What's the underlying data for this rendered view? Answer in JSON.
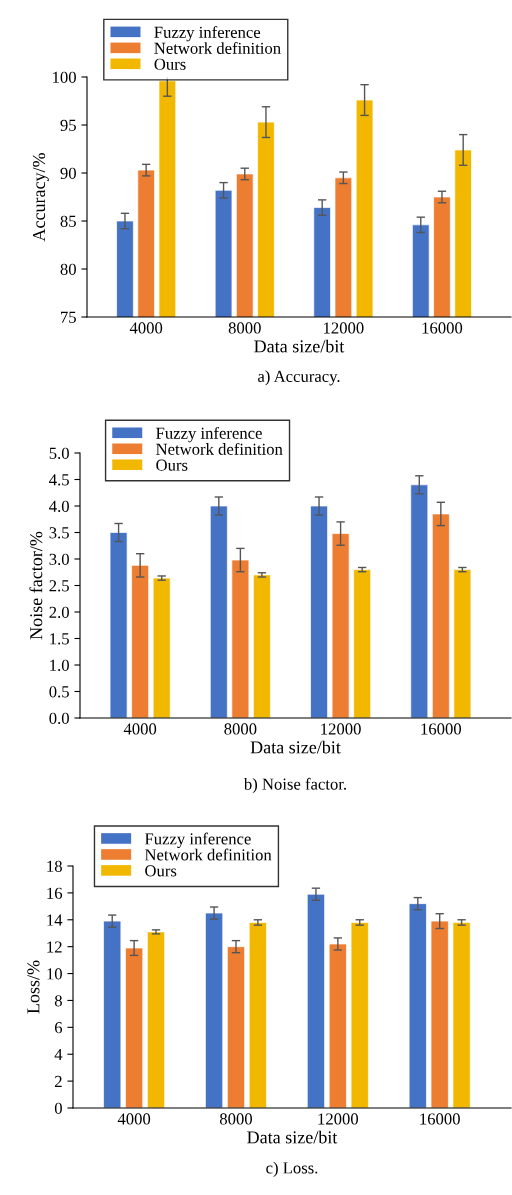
{
  "chart_data": [
    {
      "type": "bar",
      "title": "a) Accuracy.",
      "xlabel": "Data size/bit",
      "ylabel": "Accuracy/%",
      "categories": [
        "4000",
        "8000",
        "12000",
        "16000"
      ],
      "ylim": [
        75,
        100
      ],
      "yticks": [
        75,
        80,
        85,
        90,
        95,
        100
      ],
      "legend": "top left",
      "grid": false,
      "series": [
        {
          "name": "Fuzzy inference",
          "color": "#4472c4",
          "values": [
            85.0,
            88.2,
            86.4,
            84.6
          ],
          "errors": [
            0.8,
            0.8,
            0.8,
            0.8
          ]
        },
        {
          "name": "Network definition",
          "color": "#ed7d31",
          "values": [
            90.3,
            89.9,
            89.5,
            87.5
          ],
          "errors": [
            0.6,
            0.6,
            0.6,
            0.6
          ]
        },
        {
          "name": "Ours",
          "color": "#f2b800",
          "values": [
            99.6,
            95.3,
            97.6,
            92.4
          ],
          "errors": [
            1.6,
            1.6,
            1.6,
            1.6
          ]
        }
      ]
    },
    {
      "type": "bar",
      "title": "b) Noise factor.",
      "xlabel": "Data size/bit",
      "ylabel": "Noise factor/%",
      "categories": [
        "4000",
        "8000",
        "12000",
        "16000"
      ],
      "ylim": [
        0,
        5
      ],
      "yticks": [
        {
          "value": 0,
          "label": "0.0"
        },
        0.5,
        {
          "value": 1,
          "label": "1.0"
        },
        1.5,
        {
          "value": 2,
          "label": "2.0"
        },
        2.5,
        {
          "value": 3,
          "label": "3.0"
        },
        3.5,
        {
          "value": 4,
          "label": "4.0"
        },
        4.5,
        {
          "value": 5,
          "label": "5.0"
        }
      ],
      "legend": "top left",
      "grid": false,
      "series": [
        {
          "name": "Fuzzy inference",
          "color": "#4472c4",
          "values": [
            3.5,
            4.0,
            4.0,
            4.4
          ],
          "errors": [
            0.17,
            0.17,
            0.17,
            0.17
          ]
        },
        {
          "name": "Network definition",
          "color": "#ed7d31",
          "values": [
            2.88,
            2.98,
            3.48,
            3.85
          ],
          "errors": [
            0.22,
            0.22,
            0.22,
            0.22
          ]
        },
        {
          "name": "Ours",
          "color": "#f2b800",
          "values": [
            2.64,
            2.7,
            2.8,
            2.8
          ],
          "errors": [
            0.04,
            0.04,
            0.04,
            0.04
          ]
        }
      ]
    },
    {
      "type": "bar",
      "title": "c) Loss.",
      "xlabel": "Data size/bit",
      "ylabel": "Loss/%",
      "categories": [
        "4000",
        "8000",
        "12000",
        "16000"
      ],
      "ylim": [
        0,
        18
      ],
      "yticks": [
        0,
        2,
        4,
        6,
        8,
        10,
        12,
        14,
        16,
        18
      ],
      "legend": "top left",
      "grid": false,
      "series": [
        {
          "name": "Fuzzy inference",
          "color": "#4472c4",
          "values": [
            13.9,
            14.5,
            15.9,
            15.2
          ],
          "errors": [
            0.45,
            0.45,
            0.45,
            0.45
          ]
        },
        {
          "name": "Network definition",
          "color": "#ed7d31",
          "values": [
            11.9,
            12.0,
            12.2,
            13.9
          ],
          "errors": [
            0.55,
            0.45,
            0.45,
            0.55
          ]
        },
        {
          "name": "Ours",
          "color": "#f2b800",
          "values": [
            13.1,
            13.8,
            13.8,
            13.8
          ],
          "errors": [
            0.15,
            0.2,
            0.2,
            0.2
          ]
        }
      ]
    }
  ]
}
